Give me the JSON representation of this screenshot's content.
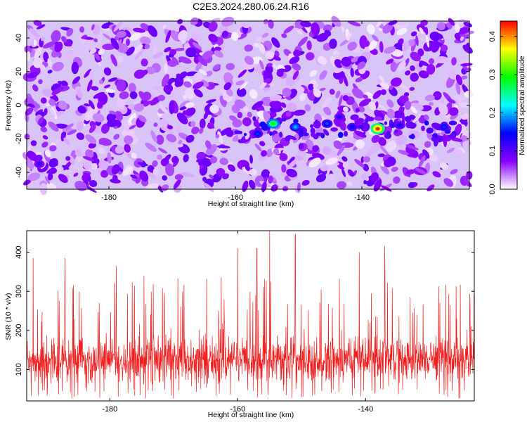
{
  "title": "C2E3.2024.280.06.24.R16",
  "chart_data": [
    {
      "type": "heatmap",
      "xlabel": "Height of straight line (km)",
      "ylabel": "Frequency (Hz)",
      "xlim": [
        -193,
        -123
      ],
      "ylim": [
        -50,
        50
      ],
      "xticks": [
        -180,
        -160,
        -140
      ],
      "yticks": [
        -40,
        -20,
        0,
        20,
        40
      ],
      "colorbar": {
        "label": "Normalized spectral amplitude",
        "range": [
          0,
          0.44
        ],
        "ticks": [
          "0.0",
          "0.1",
          "0.2",
          "0.3",
          "0.4"
        ],
        "colormap": [
          "#ffffff",
          "#8a00ff",
          "#0000ff",
          "#00ffff",
          "#00ff00",
          "#ffff00",
          "#ff0000"
        ]
      },
      "hotspots": [
        {
          "x": -137.5,
          "y": -14,
          "value": 0.43
        },
        {
          "x": -154,
          "y": -11,
          "value": 0.3
        },
        {
          "x": -150.5,
          "y": -13,
          "value": 0.2
        },
        {
          "x": -156.5,
          "y": -17,
          "value": 0.16
        },
        {
          "x": -145.5,
          "y": -11,
          "value": 0.17
        },
        {
          "x": -141.5,
          "y": -13,
          "value": 0.15
        },
        {
          "x": -134,
          "y": -12,
          "value": 0.14
        },
        {
          "x": -127,
          "y": -13,
          "value": 0.16
        },
        {
          "x": -191,
          "y": -35,
          "value": 0.12
        },
        {
          "x": -143.5,
          "y": -7,
          "value": 0.13
        }
      ],
      "grid": false
    },
    {
      "type": "line",
      "xlabel": "Height of straight line (km)",
      "ylabel": "SNR (10 * v/v)",
      "xlim": [
        -193,
        -123
      ],
      "ylim": [
        20,
        455
      ],
      "xticks": [
        -180,
        -160,
        -140
      ],
      "yticks": [
        100,
        200,
        300,
        400
      ],
      "series": [
        {
          "color": "#ee2020",
          "baseline": 125,
          "typical_range": [
            30,
            250
          ],
          "peaks": [
            [
              -157,
              410
            ],
            [
              -155,
              455
            ],
            [
              -151,
              445
            ],
            [
              -160,
              410
            ],
            [
              -141,
              400
            ],
            [
              -137,
              415
            ],
            [
              -187,
              385
            ],
            [
              -192,
              385
            ],
            [
              -179,
              365
            ]
          ]
        }
      ],
      "grid": false
    }
  ],
  "colors": {
    "line": "#ee2020",
    "axes": "#000000",
    "background": "#ffffff"
  }
}
